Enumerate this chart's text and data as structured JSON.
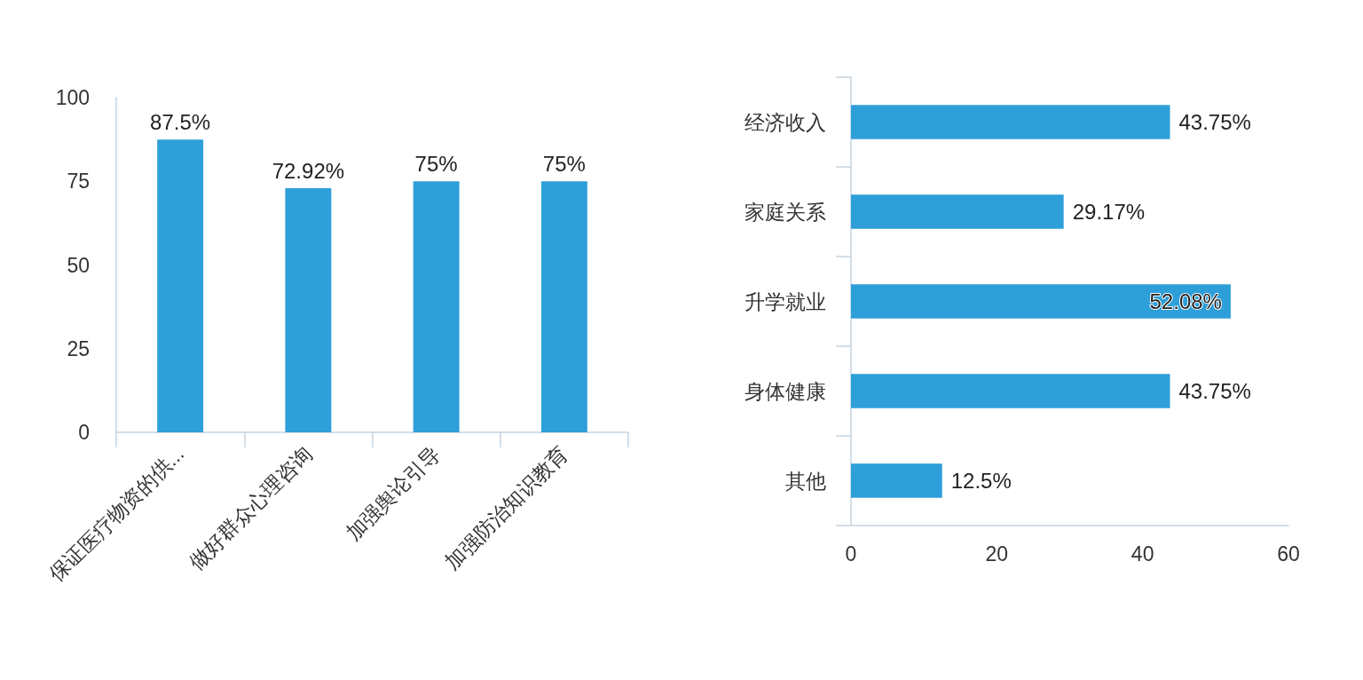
{
  "chart_data": [
    {
      "type": "bar",
      "categories": [
        "保证医疗物资的供...",
        "做好群众心理咨询",
        "加强舆论引导",
        "加强防治知识教育"
      ],
      "values": [
        87.5,
        72.92,
        75,
        75
      ],
      "color": "#2e9fd9",
      "ylim": [
        0,
        100
      ],
      "yticks": [
        0,
        25,
        50,
        75,
        100
      ],
      "value_labels": [
        "87.5%",
        "72.92%",
        "75%",
        "75%"
      ]
    },
    {
      "type": "bar",
      "orientation": "horizontal",
      "categories": [
        "经济收入",
        "家庭关系",
        "升学就业",
        "身体健康",
        "其他"
      ],
      "values": [
        43.75,
        29.17,
        52.08,
        43.75,
        12.5
      ],
      "color": "#2e9fd9",
      "xlim": [
        0,
        60
      ],
      "xticks": [
        0,
        20,
        40,
        60
      ],
      "value_labels": [
        "43.75%",
        "29.17%",
        "52.08%",
        "43.75%",
        "12.5%"
      ]
    }
  ]
}
